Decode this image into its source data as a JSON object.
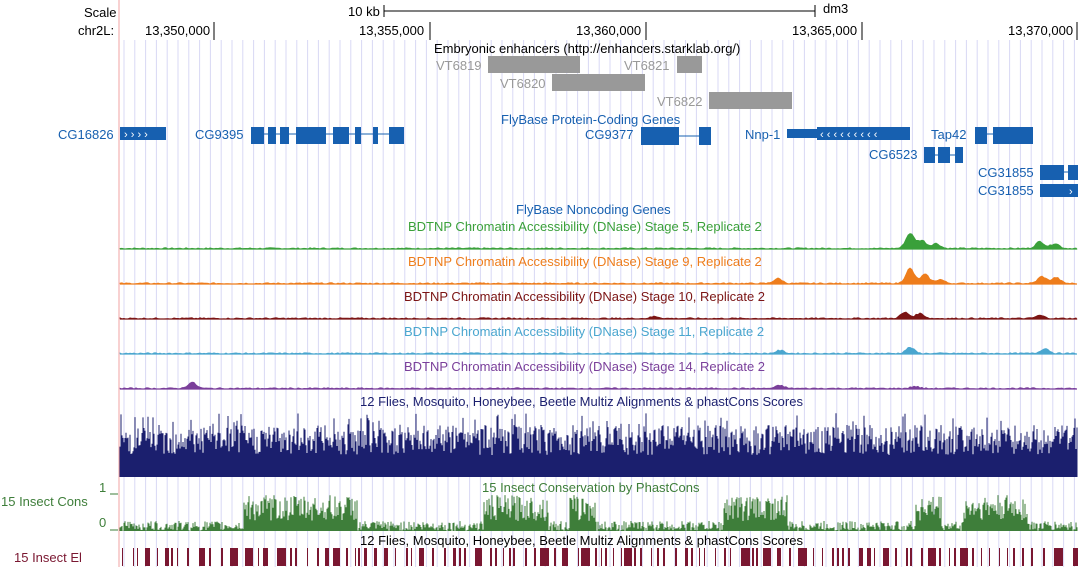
{
  "header": {
    "scale_label": "Scale",
    "scale_bar_label": "10 kb",
    "assembly": "dm3",
    "chrom_label": "chr2L:",
    "positions": [
      "13,350,000",
      "13,355,000",
      "13,360,000",
      "13,365,000",
      "13,370,000"
    ]
  },
  "colors": {
    "gene_blue": "#1760b0",
    "enhancer_gray": "#999999",
    "stage5": "#3aa03a",
    "stage9": "#ee7d1c",
    "stage10": "#7b1414",
    "stage11": "#4aa6cf",
    "stage14": "#7a3f9a",
    "multiz": "#1b1f6e",
    "phastcons": "#3e7e3a",
    "elements": "#7a1731",
    "left_margin_line": "#f2a3a3",
    "grid": "#d8d8f4"
  },
  "tracks": {
    "enhancers": {
      "title": "Embryonic enhancers (http://enhancers.starklab.org/)",
      "items": [
        "VT6819",
        "VT6820",
        "VT6821",
        "VT6822"
      ]
    },
    "protein_coding": {
      "title": "FlyBase Protein-Coding Genes",
      "genes": [
        "CG16826",
        "CG9395",
        "CG9377",
        "Nnp-1",
        "Tap42",
        "CG6523",
        "CG31855",
        "CG31855"
      ]
    },
    "noncoding": {
      "title": "FlyBase Noncoding Genes"
    },
    "dnase": [
      {
        "title": "BDTNP Chromatin Accessibility (DNase) Stage 5, Replicate 2"
      },
      {
        "title": "BDTNP Chromatin Accessibility (DNase) Stage 9, Replicate 2"
      },
      {
        "title": "BDTNP Chromatin Accessibility (DNase) Stage 10, Replicate 2"
      },
      {
        "title": "BDTNP Chromatin Accessibility (DNase) Stage 11, Replicate 2"
      },
      {
        "title": "BDTNP Chromatin Accessibility (DNase) Stage 14, Replicate 2"
      }
    ],
    "multiz": {
      "title": "12 Flies, Mosquito, Honeybee, Beetle Multiz Alignments & phastCons Scores"
    },
    "phastcons": {
      "title": "15 Insect Conservation by PhastCons",
      "side_label": "15 Insect Cons",
      "axis_max": "1",
      "axis_min": "0"
    },
    "elements": {
      "title": "12 Flies, Mosquito, Honeybee, Beetle Multiz Alignments & phastCons Scores",
      "side_label": "15 Insect El"
    }
  }
}
